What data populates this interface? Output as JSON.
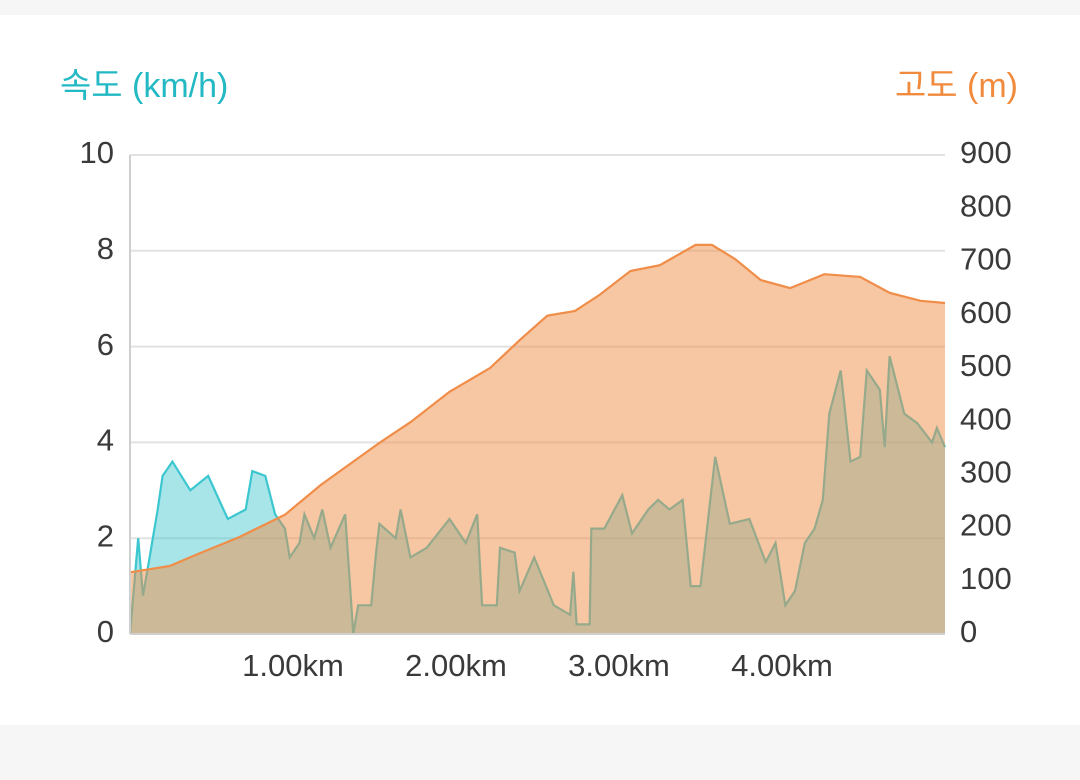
{
  "chart_data": {
    "type": "area",
    "y_label": "속도 (km/h)",
    "y2_label": "고도 (m)",
    "xlim": [
      0,
      5
    ],
    "xticks": [
      {
        "value": 1,
        "label": "1.00km"
      },
      {
        "value": 2,
        "label": "2.00km"
      },
      {
        "value": 3,
        "label": "3.00km"
      },
      {
        "value": 4,
        "label": "4.00km"
      }
    ],
    "ylim": [
      0,
      10
    ],
    "yticks": [
      0,
      2,
      4,
      6,
      8,
      10
    ],
    "y2lim": [
      0,
      900
    ],
    "y2ticks": [
      0,
      100,
      200,
      300,
      400,
      500,
      600,
      700,
      800,
      900
    ],
    "grid": true,
    "series": [
      {
        "name": "속도",
        "color": "#3cc6cf",
        "axis": "y",
        "x": [
          0,
          0.05,
          0.08,
          0.12,
          0.17,
          0.2,
          0.26,
          0.37,
          0.48,
          0.6,
          0.71,
          0.75,
          0.83,
          0.89,
          0.95,
          0.98,
          1.04,
          1.07,
          1.13,
          1.18,
          1.23,
          1.32,
          1.37,
          1.4,
          1.48,
          1.51,
          1.53,
          1.63,
          1.66,
          1.72,
          1.82,
          1.96,
          2.06,
          2.13,
          2.16,
          2.25,
          2.27,
          2.36,
          2.39,
          2.48,
          2.6,
          2.7,
          2.72,
          2.74,
          2.82,
          2.83,
          2.91,
          3.02,
          3.08,
          3.18,
          3.24,
          3.31,
          3.39,
          3.44,
          3.5,
          3.59,
          3.68,
          3.8,
          3.9,
          3.96,
          4.02,
          4.08,
          4.14,
          4.2,
          4.25,
          4.29,
          4.36,
          4.42,
          4.48,
          4.52,
          4.6,
          4.63,
          4.66,
          4.75,
          4.83,
          4.92,
          4.95,
          5.0
        ],
        "values": [
          0,
          2.0,
          0.8,
          1.6,
          2.6,
          3.3,
          3.6,
          3.0,
          3.3,
          2.4,
          2.6,
          3.4,
          3.3,
          2.5,
          2.2,
          1.6,
          1.9,
          2.5,
          2.0,
          2.6,
          1.8,
          2.5,
          0.0,
          0.6,
          0.6,
          1.7,
          2.3,
          2.0,
          2.6,
          1.6,
          1.8,
          2.4,
          1.9,
          2.5,
          0.6,
          0.6,
          1.8,
          1.7,
          0.9,
          1.6,
          0.6,
          0.4,
          1.3,
          0.2,
          0.2,
          2.2,
          2.2,
          2.9,
          2.1,
          2.6,
          2.8,
          2.6,
          2.8,
          1.0,
          1.0,
          3.7,
          2.3,
          2.4,
          1.5,
          1.9,
          0.6,
          0.9,
          1.9,
          2.2,
          2.8,
          4.6,
          5.5,
          3.6,
          3.7,
          5.5,
          5.1,
          3.9,
          5.8,
          4.6,
          4.4,
          4.0,
          4.3,
          3.9
        ]
      },
      {
        "name": "고도",
        "color": "#f08d48",
        "axis": "y2",
        "x": [
          0,
          0.245,
          0.43,
          0.67,
          0.95,
          1.17,
          1.53,
          1.72,
          1.96,
          2.21,
          2.39,
          2.56,
          2.73,
          2.88,
          3.07,
          3.25,
          3.47,
          3.57,
          3.71,
          3.87,
          4.05,
          4.26,
          4.48,
          4.66,
          4.85,
          5.0
        ],
        "values": [
          116,
          128,
          152,
          182,
          224,
          280,
          359,
          398,
          455,
          500,
          552,
          598,
          607,
          637,
          682,
          693,
          731,
          731,
          705,
          665,
          650,
          676,
          671,
          641,
          626,
          622
        ]
      }
    ]
  }
}
